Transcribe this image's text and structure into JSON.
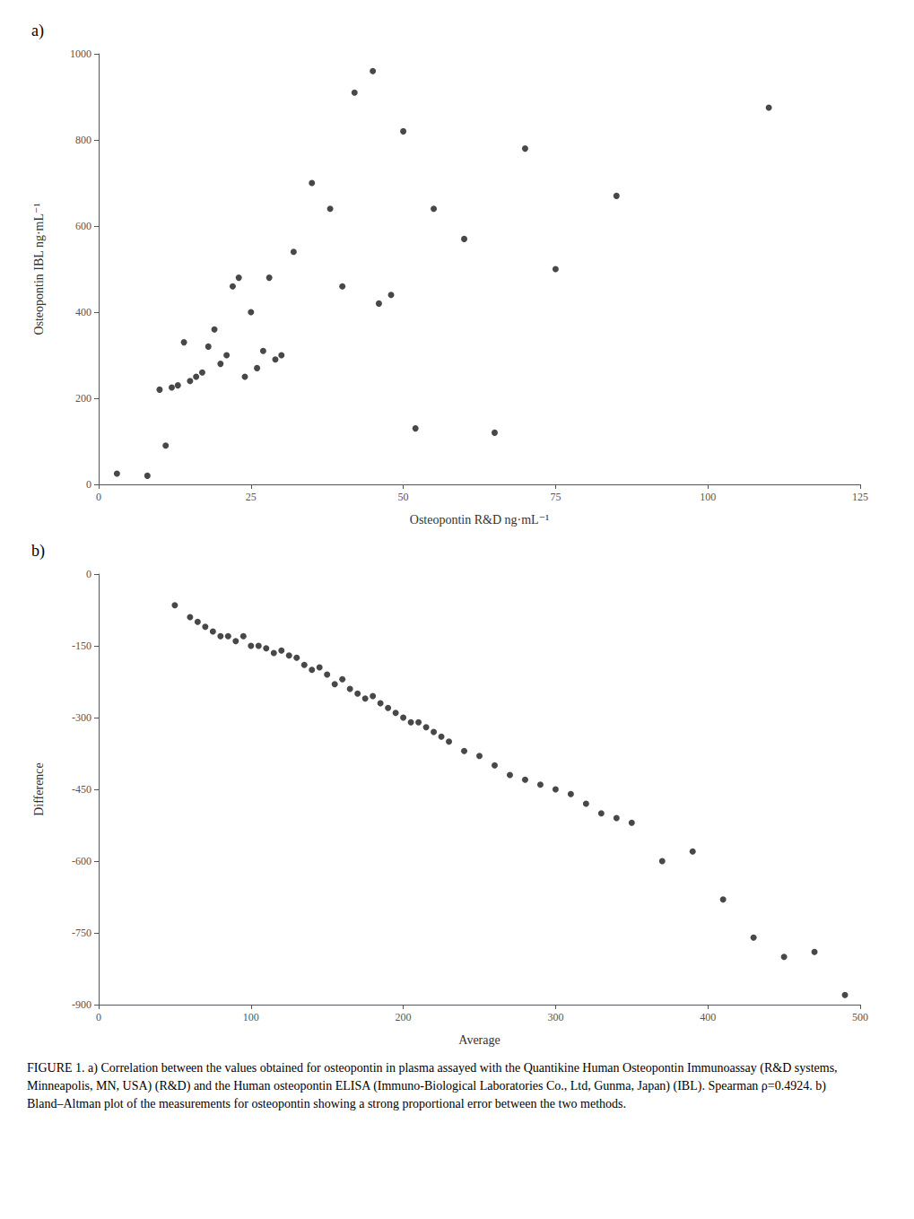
{
  "chart_data": [
    {
      "type": "scatter",
      "title": "a)",
      "x_label": "Osteopontin R&D ng·mL⁻¹",
      "y_label": "Osteopontin IBL ng·mL⁻¹",
      "x": [
        3,
        8,
        10,
        11,
        12,
        13,
        14,
        15,
        16,
        17,
        18,
        19,
        20,
        21,
        22,
        23,
        24,
        25,
        26,
        27,
        28,
        29,
        30,
        32,
        35,
        38,
        40,
        42,
        45,
        46,
        48,
        50,
        52,
        55,
        60,
        65,
        70,
        75,
        85,
        110
      ],
      "values": [
        25,
        20,
        220,
        90,
        225,
        230,
        330,
        240,
        250,
        260,
        320,
        360,
        280,
        300,
        460,
        480,
        250,
        400,
        270,
        310,
        480,
        290,
        300,
        540,
        700,
        640,
        460,
        910,
        960,
        420,
        440,
        820,
        130,
        640,
        570,
        120,
        780,
        500,
        670,
        875
      ],
      "color": "#1a1a1a",
      "xlim": [
        0,
        125
      ],
      "ylim": [
        0,
        1000
      ],
      "xticks": [
        0,
        25,
        50,
        75,
        100,
        125
      ],
      "yticks": [
        0,
        200,
        400,
        600,
        800,
        1000
      ],
      "grid": false
    },
    {
      "type": "scatter",
      "title": "b)",
      "x_label": "Average",
      "y_label": "Difference",
      "x": [
        50,
        60,
        65,
        70,
        75,
        80,
        85,
        90,
        95,
        100,
        105,
        110,
        115,
        120,
        125,
        130,
        135,
        140,
        145,
        150,
        155,
        160,
        165,
        170,
        175,
        180,
        185,
        190,
        195,
        200,
        205,
        210,
        215,
        220,
        225,
        230,
        240,
        250,
        260,
        270,
        280,
        290,
        300,
        310,
        320,
        330,
        340,
        350,
        370,
        390,
        410,
        430,
        450,
        470,
        490
      ],
      "values": [
        -65,
        -90,
        -100,
        -110,
        -120,
        -130,
        -130,
        -140,
        -130,
        -150,
        -150,
        -155,
        -165,
        -160,
        -170,
        -175,
        -190,
        -200,
        -195,
        -210,
        -230,
        -220,
        -240,
        -250,
        -260,
        -255,
        -270,
        -280,
        -290,
        -300,
        -310,
        -310,
        -320,
        -330,
        -340,
        -350,
        -370,
        -380,
        -400,
        -420,
        -430,
        -440,
        -450,
        -460,
        -480,
        -500,
        -510,
        -520,
        -600,
        -580,
        -680,
        -760,
        -800,
        -790,
        -880
      ],
      "color": "#1a1a1a",
      "xlim": [
        0,
        500
      ],
      "ylim": [
        -900,
        0
      ],
      "xticks": [
        0,
        100,
        200,
        300,
        400,
        500
      ],
      "yticks": [
        0,
        -150,
        -300,
        -450,
        -600,
        -750,
        -900
      ],
      "grid": false,
      "annotations": [
        "FIGURE 1. a) Correlation between the values obtained for osteopontin in plasma assayed with the Quantikine Human Osteopontin Immunoassay (R&D systems, Minneapolis, MN, USA) (R&D) and the Human osteopontin ELISA (Immuno-Biological Laboratories Co., Ltd, Gunma, Japan) (IBL). Spearman ρ=0.4924. b) Bland–Altman plot of the measurements for osteopontin showing a strong proportional error between the two methods."
      ]
    }
  ]
}
